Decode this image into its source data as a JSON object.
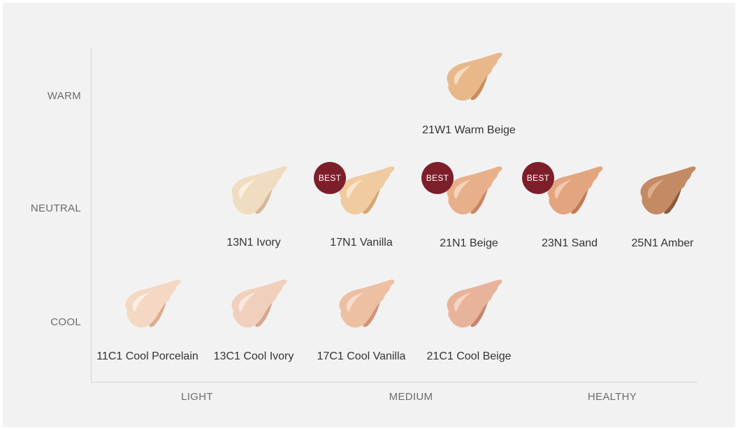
{
  "axes": {
    "rows": [
      {
        "key": "warm",
        "label": "WARM"
      },
      {
        "key": "neutral",
        "label": "NEUTRAL"
      },
      {
        "key": "cool",
        "label": "COOL"
      }
    ],
    "columns": [
      {
        "key": "light",
        "label": "LIGHT"
      },
      {
        "key": "medium",
        "label": "MEDIUM"
      },
      {
        "key": "healthy",
        "label": "HEALTHY"
      }
    ]
  },
  "badge_label": "BEST",
  "shades": [
    {
      "id": "21w1",
      "name": "21W1 Warm Beige",
      "row": "warm",
      "best": false,
      "color": "#e8b88a",
      "shadow": "#c98c5c",
      "highlight": "#f6dcc0"
    },
    {
      "id": "13n1",
      "name": "13N1 Ivory",
      "row": "neutral",
      "best": false,
      "color": "#f0dcc0",
      "shadow": "#d4b898",
      "highlight": "#fbf0e0"
    },
    {
      "id": "17n1",
      "name": "17N1 Vanilla",
      "row": "neutral",
      "best": true,
      "color": "#efcb9f",
      "shadow": "#d6a676",
      "highlight": "#f9e5cb"
    },
    {
      "id": "21n1",
      "name": "21N1 Beige",
      "row": "neutral",
      "best": true,
      "color": "#e8b08a",
      "shadow": "#c88660",
      "highlight": "#f5d4bc"
    },
    {
      "id": "23n1",
      "name": "23N1 Sand",
      "row": "neutral",
      "best": true,
      "color": "#e3a57f",
      "shadow": "#c07a52",
      "highlight": "#f2c9ae"
    },
    {
      "id": "25n1",
      "name": "25N1 Amber",
      "row": "neutral",
      "best": false,
      "color": "#c48a64",
      "shadow": "#8c5a3a",
      "highlight": "#dcae8c"
    },
    {
      "id": "11c1",
      "name": "11C1 Cool Porcelain",
      "row": "cool",
      "best": false,
      "color": "#f4d8c4",
      "shadow": "#dcab90",
      "highlight": "#fcede2"
    },
    {
      "id": "13c1",
      "name": "13C1 Cool Ivory",
      "row": "cool",
      "best": false,
      "color": "#f0d0bd",
      "shadow": "#d6a68a",
      "highlight": "#fae8dc"
    },
    {
      "id": "17c1",
      "name": "17C1 Cool Vanilla",
      "row": "cool",
      "best": false,
      "color": "#edbfa3",
      "shadow": "#d0937a",
      "highlight": "#f8dccb"
    },
    {
      "id": "21c1",
      "name": "21C1 Cool Beige",
      "row": "cool",
      "best": false,
      "color": "#e8b39b",
      "shadow": "#c7836c",
      "highlight": "#f5d2c2"
    }
  ]
}
